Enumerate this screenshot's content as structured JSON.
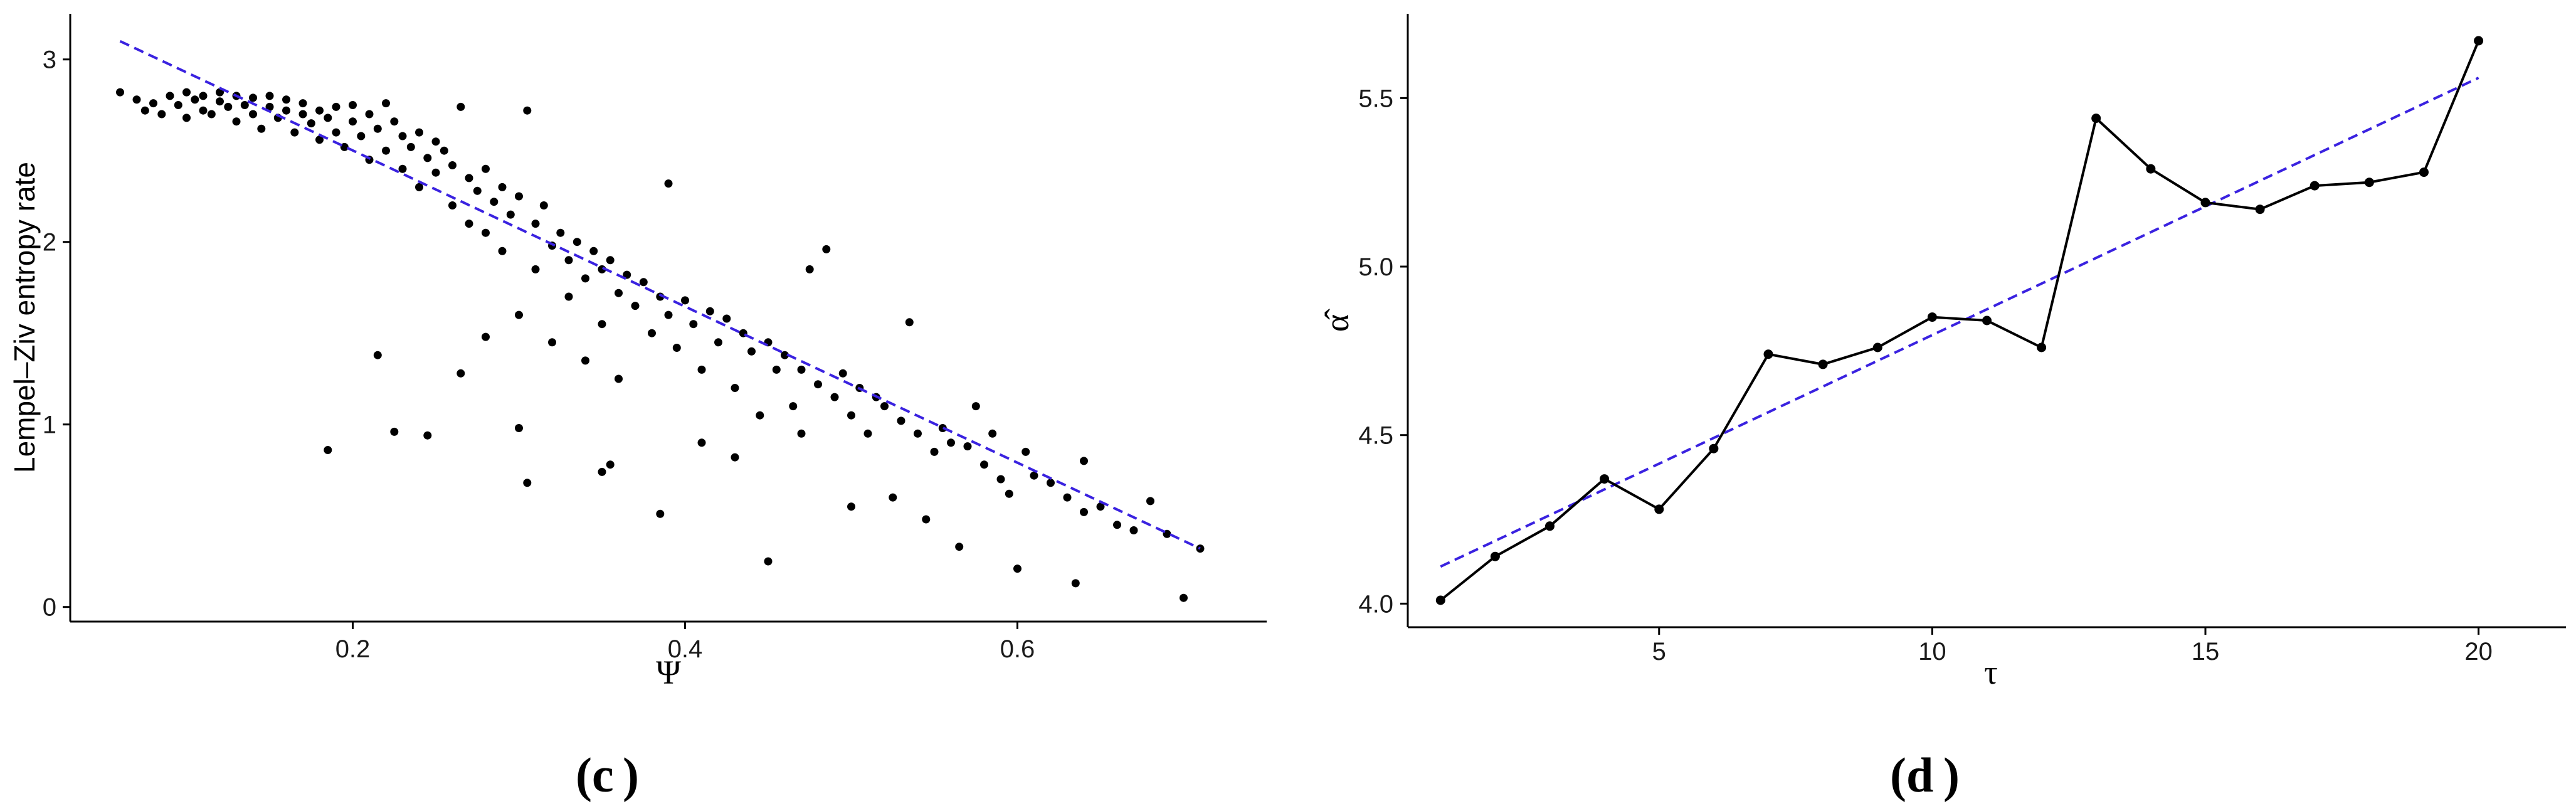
{
  "chart_data": [
    {
      "type": "scatter",
      "panel_label": "c",
      "xlabel": "Ψ",
      "ylabel": "Lempel–Ziv entropy rate",
      "xlim": [
        0.03,
        0.75
      ],
      "ylim": [
        -0.08,
        3.25
      ],
      "x_ticks": [
        0.2,
        0.4,
        0.6
      ],
      "x_tick_labels": [
        "0.2",
        "0.4",
        "0.6"
      ],
      "y_ticks": [
        0,
        1,
        2,
        3
      ],
      "y_tick_labels": [
        "0",
        "1",
        "2",
        "3"
      ],
      "grid": false,
      "point_color": "#000000",
      "trend_line": {
        "style": "dashed",
        "color": "#3a22e0",
        "points": [
          [
            0.06,
            3.1
          ],
          [
            0.71,
            0.32
          ]
        ]
      },
      "points": [
        [
          0.06,
          2.82
        ],
        [
          0.07,
          2.78
        ],
        [
          0.075,
          2.72
        ],
        [
          0.08,
          2.76
        ],
        [
          0.085,
          2.7
        ],
        [
          0.09,
          2.8
        ],
        [
          0.095,
          2.75
        ],
        [
          0.1,
          2.82
        ],
        [
          0.1,
          2.68
        ],
        [
          0.105,
          2.78
        ],
        [
          0.11,
          2.72
        ],
        [
          0.11,
          2.8
        ],
        [
          0.115,
          2.7
        ],
        [
          0.12,
          2.77
        ],
        [
          0.12,
          2.82
        ],
        [
          0.125,
          2.74
        ],
        [
          0.13,
          2.8
        ],
        [
          0.13,
          2.66
        ],
        [
          0.135,
          2.75
        ],
        [
          0.14,
          2.79
        ],
        [
          0.14,
          2.7
        ],
        [
          0.145,
          2.62
        ],
        [
          0.15,
          2.74
        ],
        [
          0.15,
          2.8
        ],
        [
          0.155,
          2.68
        ],
        [
          0.16,
          2.72
        ],
        [
          0.16,
          2.78
        ],
        [
          0.165,
          2.6
        ],
        [
          0.17,
          2.7
        ],
        [
          0.17,
          2.76
        ],
        [
          0.175,
          2.65
        ],
        [
          0.18,
          2.72
        ],
        [
          0.18,
          2.56
        ],
        [
          0.185,
          2.68
        ],
        [
          0.19,
          2.74
        ],
        [
          0.19,
          2.6
        ],
        [
          0.195,
          2.52
        ],
        [
          0.2,
          2.66
        ],
        [
          0.2,
          2.75
        ],
        [
          0.205,
          2.58
        ],
        [
          0.21,
          2.7
        ],
        [
          0.21,
          2.45
        ],
        [
          0.215,
          2.62
        ],
        [
          0.22,
          2.76
        ],
        [
          0.22,
          2.5
        ],
        [
          0.225,
          2.66
        ],
        [
          0.23,
          2.4
        ],
        [
          0.23,
          2.58
        ],
        [
          0.235,
          2.52
        ],
        [
          0.24,
          2.6
        ],
        [
          0.24,
          2.3
        ],
        [
          0.245,
          2.46
        ],
        [
          0.25,
          2.55
        ],
        [
          0.25,
          2.38
        ],
        [
          0.255,
          2.5
        ],
        [
          0.26,
          2.2
        ],
        [
          0.26,
          2.42
        ],
        [
          0.265,
          2.74
        ],
        [
          0.27,
          2.35
        ],
        [
          0.27,
          2.1
        ],
        [
          0.275,
          2.28
        ],
        [
          0.28,
          2.4
        ],
        [
          0.28,
          2.05
        ],
        [
          0.285,
          2.22
        ],
        [
          0.29,
          2.3
        ],
        [
          0.29,
          1.95
        ],
        [
          0.295,
          2.15
        ],
        [
          0.3,
          2.25
        ],
        [
          0.3,
          1.6
        ],
        [
          0.305,
          2.72
        ],
        [
          0.31,
          2.1
        ],
        [
          0.31,
          1.85
        ],
        [
          0.315,
          2.2
        ],
        [
          0.32,
          1.98
        ],
        [
          0.32,
          1.45
        ],
        [
          0.325,
          2.05
        ],
        [
          0.33,
          1.9
        ],
        [
          0.33,
          1.7
        ],
        [
          0.335,
          2.0
        ],
        [
          0.34,
          1.8
        ],
        [
          0.34,
          1.35
        ],
        [
          0.345,
          1.95
        ],
        [
          0.35,
          1.85
        ],
        [
          0.35,
          1.55
        ],
        [
          0.355,
          1.9
        ],
        [
          0.36,
          1.72
        ],
        [
          0.36,
          1.25
        ],
        [
          0.365,
          1.82
        ],
        [
          0.37,
          1.65
        ],
        [
          0.375,
          1.78
        ],
        [
          0.38,
          1.5
        ],
        [
          0.385,
          1.7
        ],
        [
          0.39,
          1.6
        ],
        [
          0.39,
          2.32
        ],
        [
          0.395,
          1.42
        ],
        [
          0.4,
          1.68
        ],
        [
          0.405,
          1.55
        ],
        [
          0.41,
          1.3
        ],
        [
          0.415,
          1.62
        ],
        [
          0.42,
          1.45
        ],
        [
          0.425,
          1.58
        ],
        [
          0.43,
          1.2
        ],
        [
          0.435,
          1.5
        ],
        [
          0.44,
          1.4
        ],
        [
          0.445,
          1.05
        ],
        [
          0.45,
          1.45
        ],
        [
          0.455,
          1.3
        ],
        [
          0.46,
          1.38
        ],
        [
          0.465,
          1.1
        ],
        [
          0.47,
          1.3
        ],
        [
          0.475,
          1.85
        ],
        [
          0.48,
          1.22
        ],
        [
          0.485,
          1.96
        ],
        [
          0.49,
          1.15
        ],
        [
          0.495,
          1.28
        ],
        [
          0.5,
          1.05
        ],
        [
          0.505,
          1.2
        ],
        [
          0.51,
          0.95
        ],
        [
          0.515,
          1.15
        ],
        [
          0.52,
          1.1
        ],
        [
          0.525,
          0.6
        ],
        [
          0.53,
          1.02
        ],
        [
          0.535,
          1.56
        ],
        [
          0.54,
          0.95
        ],
        [
          0.545,
          0.48
        ],
        [
          0.55,
          0.85
        ],
        [
          0.555,
          0.98
        ],
        [
          0.56,
          0.9
        ],
        [
          0.565,
          0.33
        ],
        [
          0.57,
          0.88
        ],
        [
          0.575,
          1.1
        ],
        [
          0.58,
          0.78
        ],
        [
          0.585,
          0.95
        ],
        [
          0.59,
          0.7
        ],
        [
          0.595,
          0.62
        ],
        [
          0.6,
          0.21
        ],
        [
          0.605,
          0.85
        ],
        [
          0.61,
          0.72
        ],
        [
          0.62,
          0.68
        ],
        [
          0.63,
          0.6
        ],
        [
          0.635,
          0.13
        ],
        [
          0.64,
          0.8
        ],
        [
          0.64,
          0.52
        ],
        [
          0.65,
          0.55
        ],
        [
          0.66,
          0.45
        ],
        [
          0.67,
          0.42
        ],
        [
          0.68,
          0.58
        ],
        [
          0.69,
          0.4
        ],
        [
          0.7,
          0.05
        ],
        [
          0.71,
          0.32
        ],
        [
          0.185,
          0.86
        ],
        [
          0.225,
          0.96
        ],
        [
          0.245,
          0.94
        ],
        [
          0.215,
          1.38
        ],
        [
          0.3,
          0.98
        ],
        [
          0.305,
          0.68
        ],
        [
          0.355,
          0.78
        ],
        [
          0.35,
          0.74
        ],
        [
          0.385,
          0.51
        ],
        [
          0.45,
          0.25
        ],
        [
          0.265,
          1.28
        ],
        [
          0.28,
          1.48
        ],
        [
          0.47,
          0.95
        ],
        [
          0.43,
          0.82
        ],
        [
          0.5,
          0.55
        ],
        [
          0.41,
          0.9
        ]
      ]
    },
    {
      "type": "line",
      "panel_label": "d",
      "xlabel": "τ",
      "ylabel": "α̂",
      "xlim": [
        0.4,
        21.6
      ],
      "ylim": [
        3.93,
        5.75
      ],
      "x_ticks": [
        5,
        10,
        15,
        20
      ],
      "x_tick_labels": [
        "5",
        "10",
        "15",
        "20"
      ],
      "y_ticks": [
        4.0,
        4.5,
        5.0,
        5.5
      ],
      "y_tick_labels": [
        "4.0",
        "4.5",
        "5.0",
        "5.5"
      ],
      "grid": false,
      "line_color": "#000000",
      "x": [
        1,
        2,
        3,
        4,
        5,
        6,
        7,
        8,
        9,
        10,
        11,
        12,
        13,
        14,
        15,
        16,
        17,
        18,
        19,
        20
      ],
      "y": [
        4.01,
        4.14,
        4.23,
        4.37,
        4.28,
        4.46,
        4.74,
        4.71,
        4.76,
        4.85,
        4.84,
        4.76,
        5.44,
        5.29,
        5.19,
        5.17,
        5.24,
        5.25,
        5.28,
        5.67
      ],
      "trend_line": {
        "style": "dashed",
        "color": "#3a22e0",
        "points": [
          [
            1,
            4.11
          ],
          [
            20,
            5.56
          ]
        ]
      }
    }
  ]
}
